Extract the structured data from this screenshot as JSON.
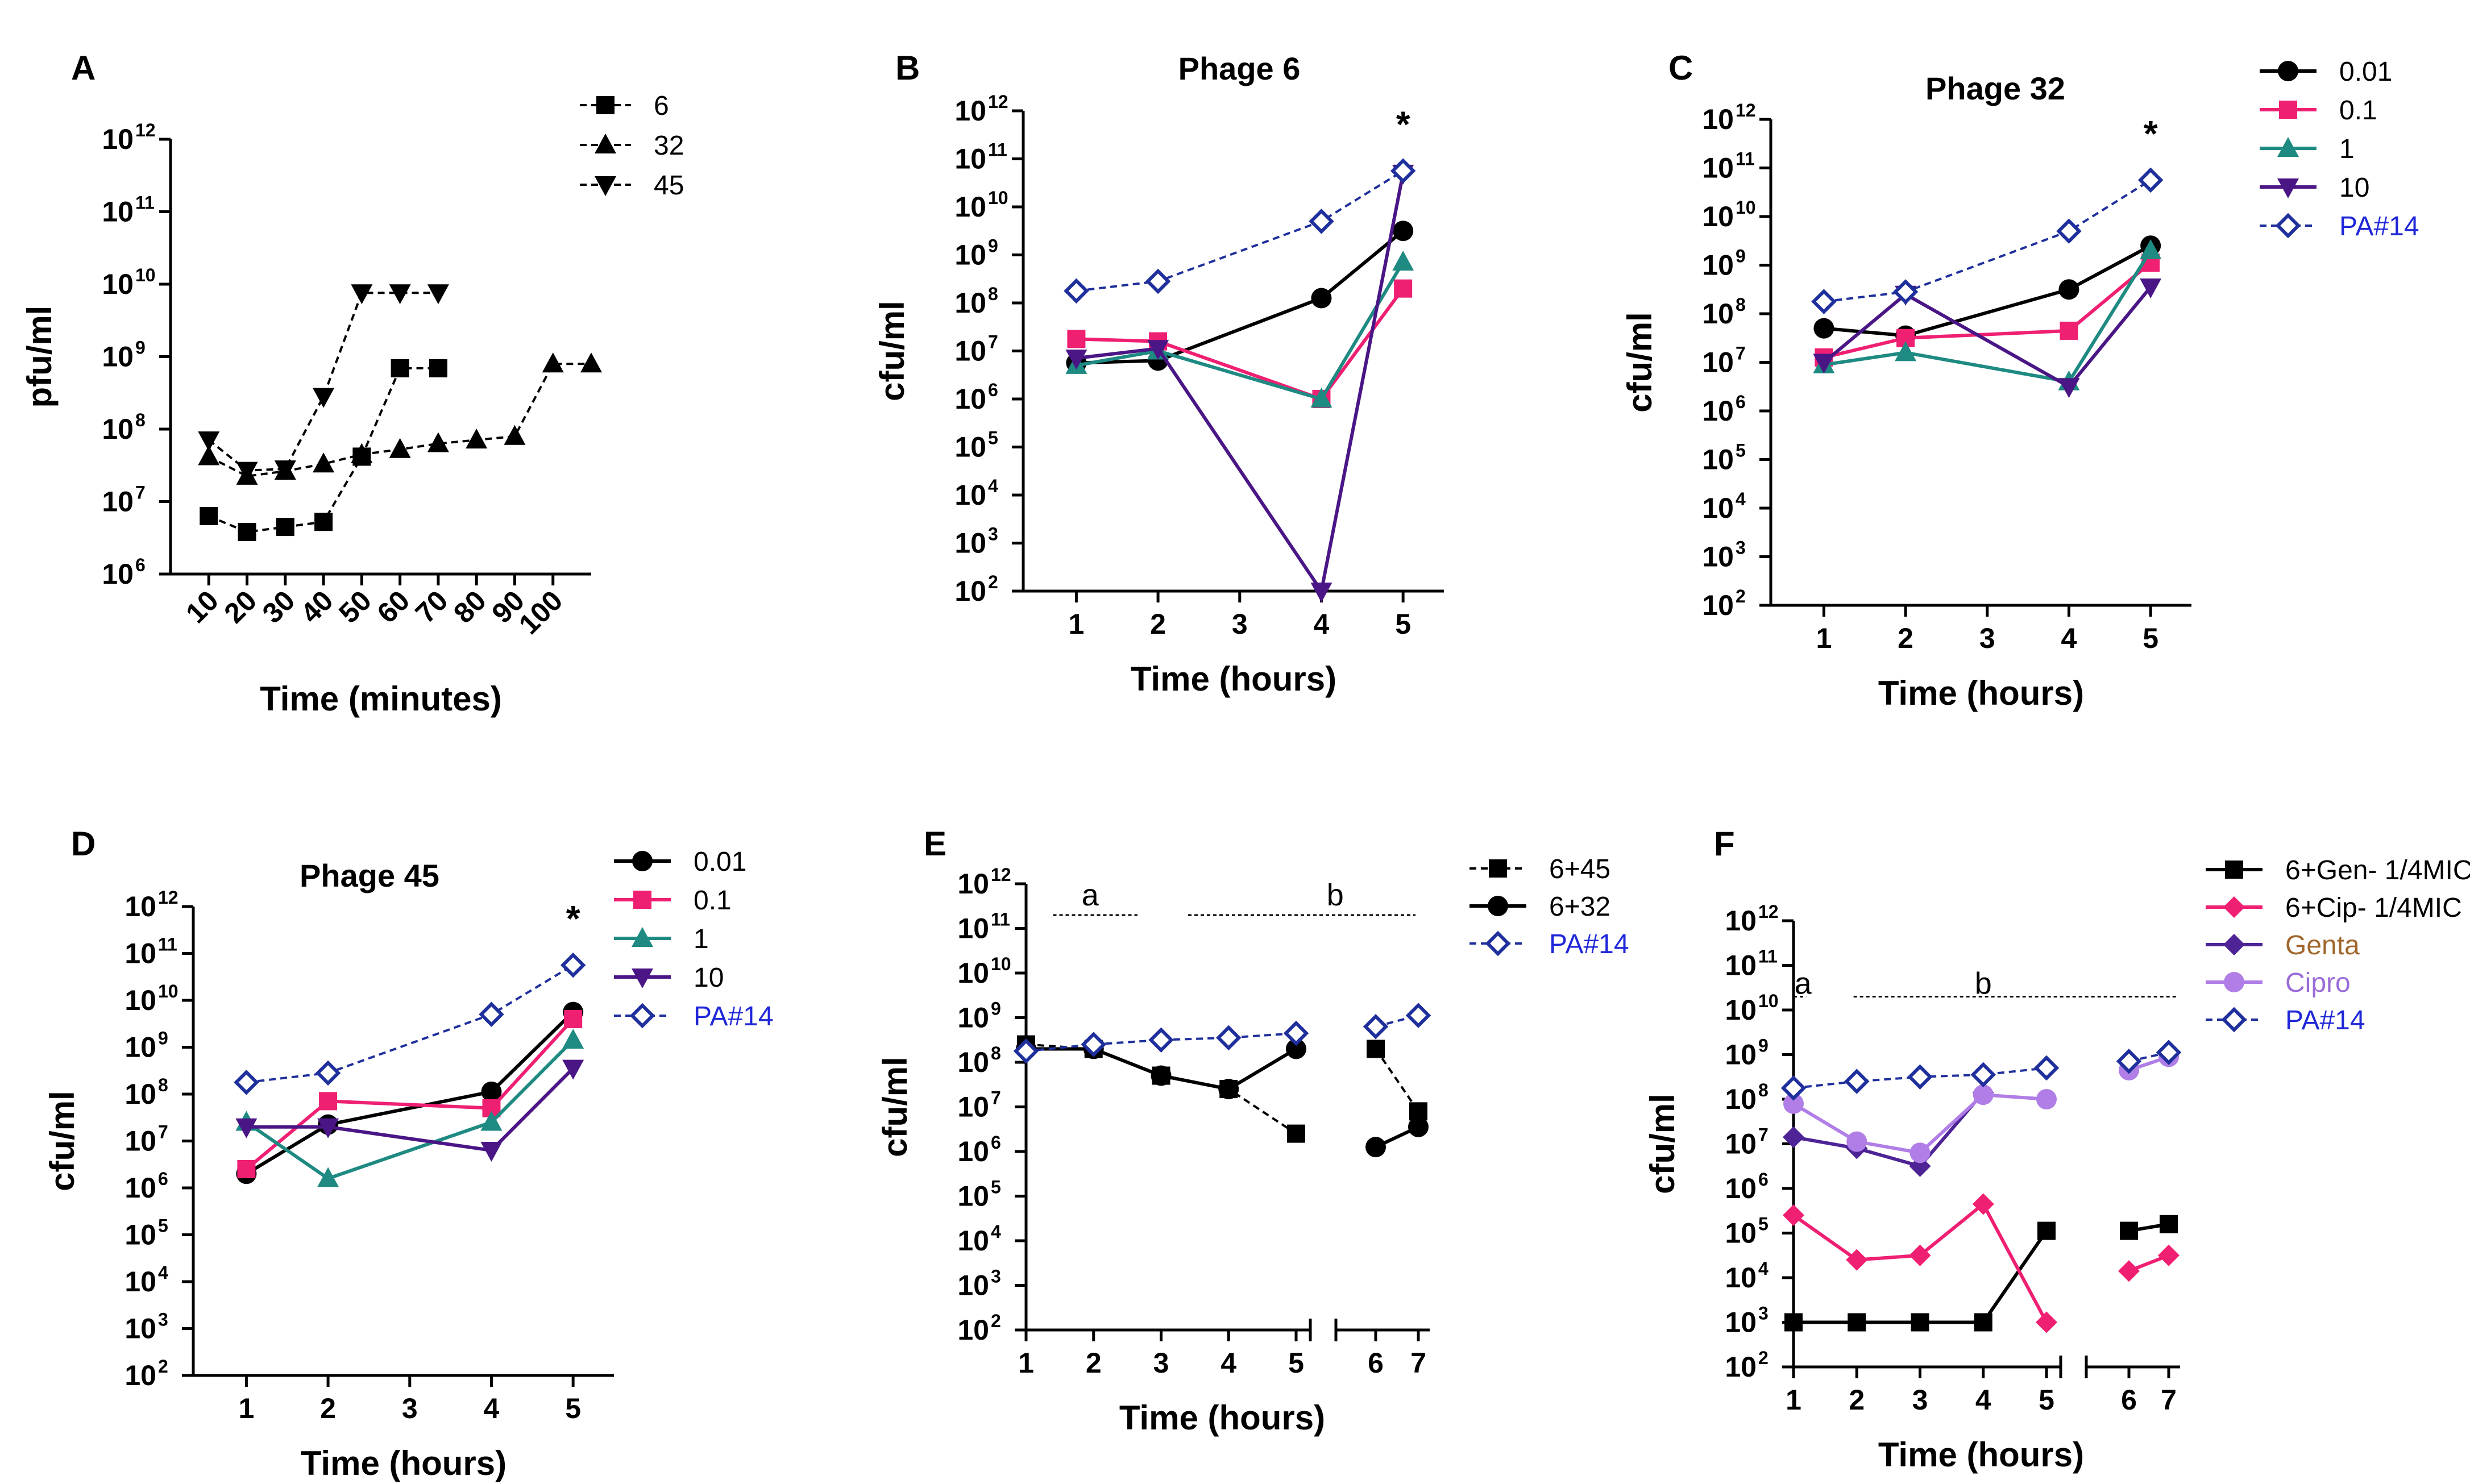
{
  "colors": {
    "black": "#000000",
    "pink": "#ef1f72",
    "teal": "#1e8a82",
    "purple": "#4a1686",
    "blue": "#1f2f9c",
    "lavender": "#b07ee6",
    "darkviolet": "#4d2396",
    "genta_text": "#a0672c",
    "cipro_text": "#9b6cd8",
    "pa_text": "#2027d8"
  },
  "chart_data": [
    {
      "id": "A",
      "type": "line",
      "letter": "A",
      "title": "",
      "xlabel": "Time (minutes)",
      "ylabel": "pfu/ml",
      "ylim_log10": [
        6,
        12
      ],
      "xlim": [
        0,
        110
      ],
      "x_ticks": [
        10,
        20,
        30,
        40,
        50,
        60,
        70,
        80,
        90,
        100
      ],
      "x_tick_labels": [
        "10",
        "20",
        "30",
        "40",
        "50",
        "60",
        "70",
        "80",
        "90",
        "100"
      ],
      "series": [
        {
          "name": "6",
          "marker": "square",
          "color_key": "black",
          "dashed": true,
          "x": [
            10,
            20,
            30,
            40,
            50,
            60,
            70
          ],
          "y_log10": [
            6.8,
            6.58,
            6.65,
            6.72,
            7.62,
            8.84,
            8.84
          ]
        },
        {
          "name": "32",
          "marker": "triangle",
          "color_key": "black",
          "dashed": true,
          "x": [
            10,
            20,
            30,
            40,
            50,
            60,
            70,
            80,
            90,
            100,
            110
          ],
          "y_log10": [
            7.62,
            7.35,
            7.42,
            7.52,
            7.65,
            7.72,
            7.8,
            7.85,
            7.9,
            8.9,
            8.9
          ]
        },
        {
          "name": "45",
          "marker": "triangle-down",
          "color_key": "black",
          "dashed": true,
          "x": [
            10,
            20,
            30,
            40,
            50,
            60,
            70
          ],
          "y_log10": [
            7.85,
            7.43,
            7.45,
            8.45,
            9.88,
            9.88,
            9.88
          ]
        }
      ]
    },
    {
      "id": "B",
      "type": "line",
      "letter": "B",
      "title": "Phage 6",
      "xlabel": "Time (hours)",
      "ylabel": "cfu/ml",
      "ylim_log10": [
        2,
        12
      ],
      "xlim": [
        0.35,
        5.5
      ],
      "x_ticks": [
        1,
        2,
        3,
        4,
        5
      ],
      "x_tick_labels": [
        "1",
        "2",
        "3",
        "4",
        "5"
      ],
      "annotation": "*",
      "series": [
        {
          "name": "0.01",
          "marker": "circle",
          "color_key": "black",
          "x": [
            1,
            2,
            4,
            5
          ],
          "y_log10": [
            6.75,
            6.8,
            8.1,
            9.5
          ]
        },
        {
          "name": "0.1",
          "marker": "square",
          "color_key": "pink",
          "x": [
            1,
            2,
            4,
            5
          ],
          "y_log10": [
            7.25,
            7.2,
            6.0,
            8.3
          ]
        },
        {
          "name": "1",
          "marker": "triangle",
          "color_key": "teal",
          "x": [
            1,
            2,
            4,
            5
          ],
          "y_log10": [
            6.7,
            7.0,
            6.0,
            8.85
          ]
        },
        {
          "name": "10",
          "marker": "triangle-down",
          "color_key": "purple",
          "x": [
            1,
            2,
            4,
            5
          ],
          "y_log10": [
            6.85,
            7.05,
            2.0,
            10.7
          ]
        },
        {
          "name": "PA#14",
          "marker": "diamond-open",
          "color_key": "blue",
          "dashed": true,
          "x": [
            1,
            2,
            4,
            5
          ],
          "y_log10": [
            8.25,
            8.45,
            9.7,
            10.75
          ]
        }
      ]
    },
    {
      "id": "C",
      "type": "line",
      "letter": "C",
      "title": "Phage 32",
      "xlabel": "Time (hours)",
      "ylabel": "cfu/ml",
      "ylim_log10": [
        2,
        12
      ],
      "xlim": [
        0.35,
        5.5
      ],
      "x_ticks": [
        1,
        2,
        3,
        4,
        5
      ],
      "x_tick_labels": [
        "1",
        "2",
        "3",
        "4",
        "5"
      ],
      "annotation": "*",
      "series": [
        {
          "name": "0.01",
          "marker": "circle",
          "color_key": "black",
          "x": [
            1,
            2,
            4,
            5
          ],
          "y_log10": [
            7.7,
            7.55,
            8.5,
            9.4
          ]
        },
        {
          "name": "0.1",
          "marker": "square",
          "color_key": "pink",
          "x": [
            1,
            2,
            4,
            5
          ],
          "y_log10": [
            7.1,
            7.5,
            7.65,
            9.05
          ]
        },
        {
          "name": "1",
          "marker": "triangle",
          "color_key": "teal",
          "x": [
            1,
            2,
            4,
            5
          ],
          "y_log10": [
            6.95,
            7.2,
            6.6,
            9.3
          ]
        },
        {
          "name": "10",
          "marker": "triangle-down",
          "color_key": "purple",
          "x": [
            1,
            2,
            4,
            5
          ],
          "y_log10": [
            7.0,
            8.4,
            6.5,
            8.55
          ]
        },
        {
          "name": "PA#14",
          "marker": "diamond-open",
          "color_key": "blue",
          "dashed": true,
          "x": [
            1,
            2,
            4,
            5
          ],
          "y_log10": [
            8.25,
            8.45,
            9.7,
            10.75
          ]
        }
      ]
    },
    {
      "id": "D",
      "type": "line",
      "letter": "D",
      "title": "Phage 45",
      "xlabel": "Time (hours)",
      "ylabel": "cfu/ml",
      "ylim_log10": [
        2,
        12
      ],
      "xlim": [
        0.35,
        5.5
      ],
      "x_ticks": [
        1,
        2,
        3,
        4,
        5
      ],
      "x_tick_labels": [
        "1",
        "2",
        "3",
        "4",
        "5"
      ],
      "annotation": "*",
      "series": [
        {
          "name": "0.01",
          "marker": "circle",
          "color_key": "black",
          "x": [
            1,
            2,
            4,
            5
          ],
          "y_log10": [
            6.3,
            7.35,
            8.05,
            9.75
          ]
        },
        {
          "name": "0.1",
          "marker": "square",
          "color_key": "pink",
          "x": [
            1,
            2,
            4,
            5
          ],
          "y_log10": [
            6.4,
            7.85,
            7.7,
            9.6
          ]
        },
        {
          "name": "1",
          "marker": "triangle",
          "color_key": "teal",
          "x": [
            1,
            2,
            4,
            5
          ],
          "y_log10": [
            7.4,
            6.2,
            7.4,
            9.15
          ]
        },
        {
          "name": "10",
          "marker": "triangle-down",
          "color_key": "purple",
          "x": [
            1,
            2,
            4,
            5
          ],
          "y_log10": [
            7.3,
            7.3,
            6.8,
            8.55
          ]
        },
        {
          "name": "PA#14",
          "marker": "diamond-open",
          "color_key": "blue",
          "dashed": true,
          "x": [
            1,
            2,
            4,
            5
          ],
          "y_log10": [
            8.25,
            8.45,
            9.7,
            10.75
          ]
        }
      ]
    },
    {
      "id": "E",
      "type": "line",
      "letter": "E",
      "title": "",
      "xlabel": "Time (hours)",
      "ylabel": "cfu/ml",
      "ylim_log10": [
        2,
        12
      ],
      "xlim": [
        1,
        7.25
      ],
      "x_ticks": [
        1,
        2,
        3,
        4,
        5,
        6,
        7
      ],
      "x_tick_labels": [
        "1",
        "2",
        "3",
        "4",
        "5",
        "6",
        "7"
      ],
      "axis_break_after": 5,
      "segment_labels": [
        "a",
        "b"
      ],
      "series": [
        {
          "name": "6+45",
          "marker": "square",
          "color_key": "black",
          "dashed": true,
          "x": [
            1,
            2,
            3,
            4,
            5,
            6,
            7
          ],
          "y_log10": [
            8.4,
            8.3,
            7.7,
            7.4,
            6.4,
            8.3,
            6.9
          ],
          "break_after": 5
        },
        {
          "name": "6+32",
          "marker": "circle",
          "color_key": "black",
          "x": [
            1,
            2,
            3,
            4,
            5,
            6,
            7
          ],
          "y_log10": [
            8.3,
            8.3,
            7.7,
            7.4,
            8.3,
            6.1,
            6.55
          ],
          "break_after": 5
        },
        {
          "name": "PA#14",
          "marker": "diamond-open",
          "color_key": "blue",
          "dashed": true,
          "x": [
            1,
            2,
            3,
            4,
            5,
            6,
            7
          ],
          "y_log10": [
            8.25,
            8.4,
            8.5,
            8.55,
            8.65,
            8.8,
            9.05
          ],
          "break_after": 5
        }
      ]
    },
    {
      "id": "F",
      "type": "line",
      "letter": "F",
      "title": "",
      "xlabel": "Time (hours)",
      "ylabel": "cfu/ml",
      "ylim_log10": [
        2,
        12
      ],
      "xlim": [
        1,
        7.25
      ],
      "x_ticks": [
        1,
        2,
        3,
        4,
        5,
        6,
        7
      ],
      "x_tick_labels": [
        "1",
        "2",
        "3",
        "4",
        "5",
        "6",
        "7"
      ],
      "axis_break_after": 5,
      "segment_labels": [
        "a",
        "b"
      ],
      "series": [
        {
          "name": "6+Gen- 1/4MIC",
          "marker": "square",
          "color_key": "black",
          "x": [
            1,
            2,
            3,
            4,
            5,
            6,
            7
          ],
          "y_log10": [
            3.0,
            3.0,
            3.0,
            3.0,
            5.05,
            5.05,
            5.2
          ],
          "break_after": 5
        },
        {
          "name": "6+Cip- 1/4MIC",
          "marker": "diamond",
          "color_key": "pink",
          "x": [
            1,
            2,
            3,
            4,
            5,
            6,
            7
          ],
          "y_log10": [
            5.4,
            4.4,
            4.5,
            5.65,
            3.0,
            4.15,
            4.5
          ],
          "break_after": 5
        },
        {
          "name": "Genta",
          "marker": "diamond",
          "color_key": "darkviolet",
          "x": [
            1,
            2,
            3,
            4
          ],
          "y_log10": [
            7.15,
            6.9,
            6.5,
            8.15
          ]
        },
        {
          "name": "Cipro",
          "marker": "circle",
          "color_key": "lavender",
          "x": [
            1,
            2,
            3,
            4,
            5,
            6,
            7
          ],
          "y_log10": [
            7.9,
            7.05,
            6.8,
            8.1,
            8.0,
            8.65,
            8.95
          ],
          "break_after": 5
        },
        {
          "name": "PA#14",
          "marker": "diamond-open",
          "color_key": "blue",
          "dashed": true,
          "x": [
            1,
            2,
            3,
            4,
            5,
            6,
            7
          ],
          "y_log10": [
            8.25,
            8.4,
            8.5,
            8.55,
            8.7,
            8.85,
            9.05
          ],
          "break_after": 5
        }
      ]
    }
  ]
}
